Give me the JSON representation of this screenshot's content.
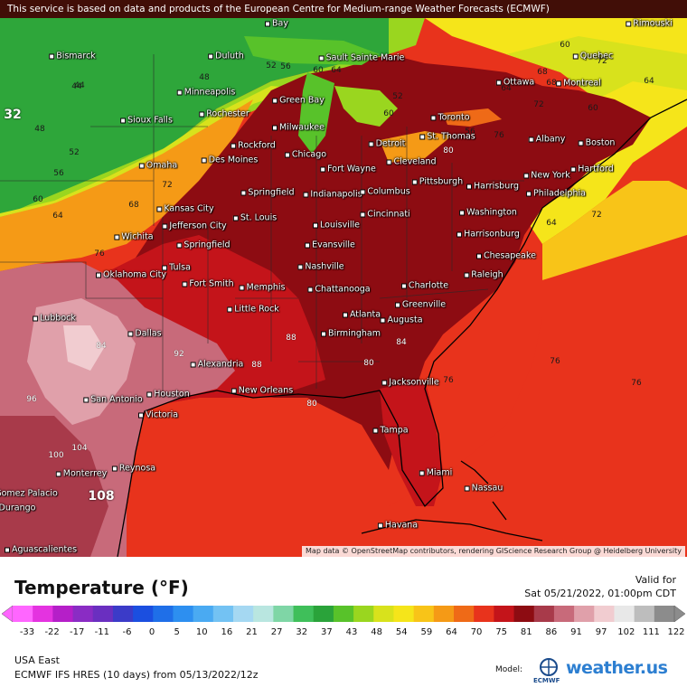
{
  "banner": "This service is based on data and products of the European Centre for Medium-range Weather Forecasts (ECMWF)",
  "credits": "Map data © OpenStreetMap contributors, rendering GIScience Research Group @ Heidelberg University",
  "legend": {
    "title": "Temperature (°F)",
    "valid_label": "Valid for",
    "valid_date": "Sat 05/21/2022, 01:00pm CDT",
    "ticks": [
      "-33",
      "-22",
      "-17",
      "-11",
      "-6",
      "0",
      "5",
      "10",
      "16",
      "21",
      "27",
      "32",
      "37",
      "43",
      "48",
      "54",
      "59",
      "64",
      "70",
      "75",
      "81",
      "86",
      "91",
      "97",
      "102",
      "111",
      "122"
    ],
    "colors": [
      "#ff66ff",
      "#e433e0",
      "#b51fc8",
      "#8a2cc4",
      "#6a2fc0",
      "#3b3bc8",
      "#1b4fe0",
      "#1f6fe8",
      "#2d8ff0",
      "#4aaaf2",
      "#73c2f3",
      "#a5d8f2",
      "#b9e6e0",
      "#7fd6a6",
      "#3fbf5a",
      "#2aa33a",
      "#58c22a",
      "#9ad61f",
      "#d8e21c",
      "#f5e51a",
      "#f8c418",
      "#f59a16",
      "#ef6a17",
      "#e8331c",
      "#c4141a",
      "#8d0c12",
      "#a83a4a",
      "#c86a7a",
      "#e0a0aa",
      "#f1ccd0",
      "#e8e8e8",
      "#bdbdbd",
      "#8c8c8c"
    ]
  },
  "footer": {
    "region": "USA East",
    "model_line": "ECMWF IFS HRES (10 days) from 05/13/2022/12z",
    "model_label": "Model:",
    "ecmwf": "ECMWF",
    "brand": "weather.us"
  },
  "cities": [
    {
      "name": "Bay"
    },
    {
      "name": "Rimouski"
    },
    {
      "name": "Bismarck"
    },
    {
      "name": "Duluth"
    },
    {
      "name": "Sault Sainte Marie"
    },
    {
      "name": "Quebec"
    },
    {
      "name": "Minneapolis"
    },
    {
      "name": "Green Bay"
    },
    {
      "name": "Ottawa"
    },
    {
      "name": "Montreal"
    },
    {
      "name": "Rochester"
    },
    {
      "name": "Sioux Falls"
    },
    {
      "name": "Toronto"
    },
    {
      "name": "Milwaukee"
    },
    {
      "name": "Albany"
    },
    {
      "name": "Rockford"
    },
    {
      "name": "Detroit"
    },
    {
      "name": "St. Thomas"
    },
    {
      "name": "Boston"
    },
    {
      "name": "Des Moines"
    },
    {
      "name": "Chicago"
    },
    {
      "name": "Cleveland"
    },
    {
      "name": "Omaha"
    },
    {
      "name": "Fort Wayne"
    },
    {
      "name": "New York"
    },
    {
      "name": "Hartford"
    },
    {
      "name": "Pittsburgh"
    },
    {
      "name": "Harrisburg"
    },
    {
      "name": "Springfield"
    },
    {
      "name": "Indianapolis"
    },
    {
      "name": "Columbus"
    },
    {
      "name": "Philadelphia"
    },
    {
      "name": "Kansas City"
    },
    {
      "name": "Cincinnati"
    },
    {
      "name": "Washington"
    },
    {
      "name": "St. Louis"
    },
    {
      "name": "Jefferson City"
    },
    {
      "name": "Louisville"
    },
    {
      "name": "Harrisonburg"
    },
    {
      "name": "Wichita"
    },
    {
      "name": "Evansville"
    },
    {
      "name": "Springfield"
    },
    {
      "name": "Chesapeake"
    },
    {
      "name": "Oklahoma City"
    },
    {
      "name": "Tulsa"
    },
    {
      "name": "Nashville"
    },
    {
      "name": "Raleigh"
    },
    {
      "name": "Fort Smith"
    },
    {
      "name": "Memphis"
    },
    {
      "name": "Chattanooga"
    },
    {
      "name": "Charlotte"
    },
    {
      "name": "Little Rock"
    },
    {
      "name": "Greenville"
    },
    {
      "name": "Lubbock"
    },
    {
      "name": "Atlanta"
    },
    {
      "name": "Augusta"
    },
    {
      "name": "Dallas"
    },
    {
      "name": "Birmingham"
    },
    {
      "name": "Alexandria"
    },
    {
      "name": "New Orleans"
    },
    {
      "name": "Jacksonville"
    },
    {
      "name": "San Antonio"
    },
    {
      "name": "Houston"
    },
    {
      "name": "Victoria"
    },
    {
      "name": "Tampa"
    },
    {
      "name": "Reynosa"
    },
    {
      "name": "Miami"
    },
    {
      "name": "Monterrey"
    },
    {
      "name": "Nassau"
    },
    {
      "name": "Gomez Palacio"
    },
    {
      "name": "Durango"
    },
    {
      "name": "Havana"
    },
    {
      "name": "Aguascalientes"
    }
  ],
  "isolines": [
    "44",
    "48",
    "56",
    "60",
    "64",
    "52",
    "48",
    "44",
    "52",
    "56",
    "60",
    "64",
    "60",
    "68",
    "72",
    "76",
    "76",
    "80",
    "84",
    "88",
    "92",
    "96",
    "100",
    "104",
    "108",
    "88",
    "84",
    "80",
    "76",
    "76",
    "72",
    "64",
    "60",
    "64",
    "68",
    "72",
    "76",
    "80",
    "56",
    "52",
    "60",
    "64",
    "68",
    "72",
    "32"
  ]
}
